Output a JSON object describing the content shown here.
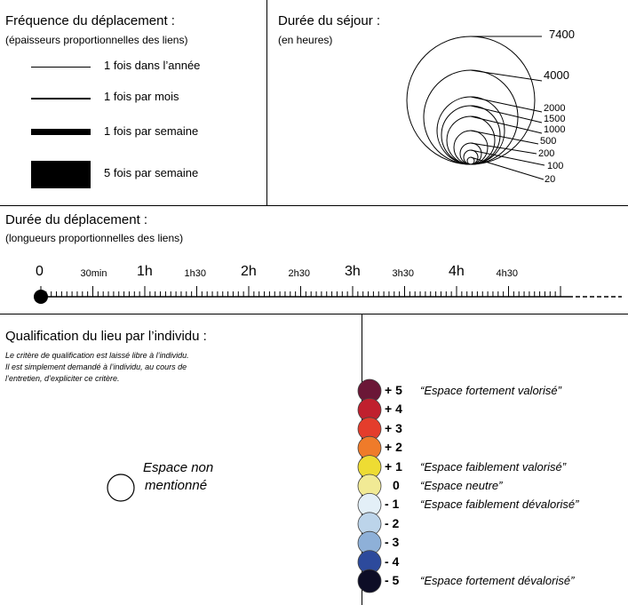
{
  "frequency": {
    "title": "Fréquence du déplacement :",
    "subtitle": "(épaisseurs proportionnelles des liens)",
    "items": [
      {
        "label": "1 fois dans l’année"
      },
      {
        "label": "1 fois par mois"
      },
      {
        "label": "1 fois par semaine"
      },
      {
        "label": "5 fois par semaine"
      }
    ]
  },
  "stay": {
    "title": "Durée du séjour :",
    "subtitle": "(en heures)",
    "values": [
      "7400",
      "4000",
      "2000",
      "1500",
      "1000",
      "500",
      "200",
      "100",
      "20"
    ]
  },
  "duration": {
    "title": "Durée du déplacement :",
    "subtitle": "(longueurs proportionnelles des liens)",
    "ticks": [
      "0",
      "30min",
      "1h",
      "1h30",
      "2h",
      "2h30",
      "3h",
      "3h30",
      "4h",
      "4h30"
    ]
  },
  "qualification": {
    "title": "Qualification du lieu par l’individu :",
    "note_lines": [
      "Le critère de qualification est laissé libre à l’individu.",
      "Il est simplement demandé à l’individu, au cours de",
      "l’entretien, d’expliciter ce critère."
    ],
    "not_mentioned": [
      "Espace non",
      "mentionné"
    ],
    "scale": [
      {
        "value": "+ 5",
        "color": "#6b1737",
        "label": "“Espace fortement valorisé”"
      },
      {
        "value": "+ 4",
        "color": "#c0202e",
        "label": ""
      },
      {
        "value": "+ 3",
        "color": "#e43d2c",
        "label": ""
      },
      {
        "value": "+ 2",
        "color": "#ef7b2a",
        "label": ""
      },
      {
        "value": "+ 1",
        "color": "#eedc33",
        "label": "“Espace faiblement valorisé”"
      },
      {
        "value": "0",
        "color": "#f1ea95",
        "label": "“Espace neutre”"
      },
      {
        "value": "- 1",
        "color": "#e3eff7",
        "label": "“Espace faiblement dévalorisé”"
      },
      {
        "value": "- 2",
        "color": "#bcd4ea",
        "label": ""
      },
      {
        "value": "- 3",
        "color": "#8eb0d8",
        "label": ""
      },
      {
        "value": "- 4",
        "color": "#2d4a9c",
        "label": ""
      },
      {
        "value": "- 5",
        "color": "#0d0d26",
        "label": "“Espace fortement dévalorisé”"
      }
    ]
  }
}
